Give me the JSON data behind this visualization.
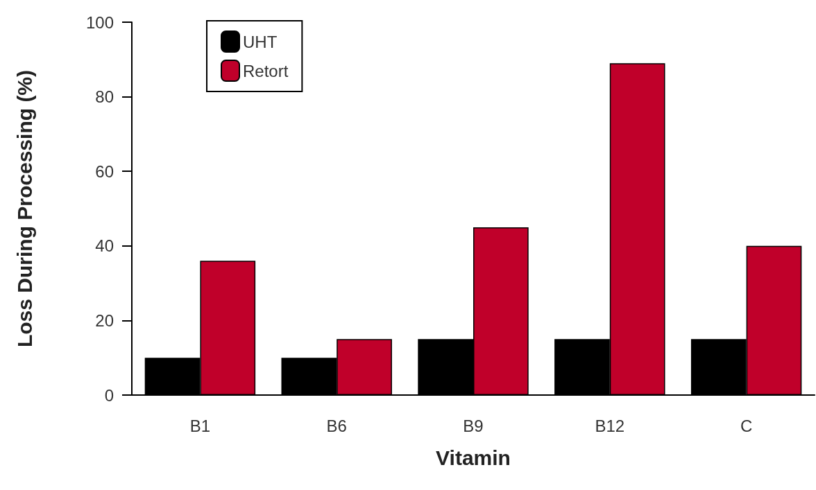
{
  "chart_data": {
    "type": "bar",
    "xlabel": "Vitamin",
    "ylabel": "Loss During Processing (%)",
    "categories": [
      "B1",
      "B6",
      "B9",
      "B12",
      "C"
    ],
    "series": [
      {
        "name": "UHT",
        "color": "#000000",
        "values": [
          10,
          10,
          15,
          15,
          15
        ]
      },
      {
        "name": "Retort",
        "color": "#c0002a",
        "values": [
          36,
          15,
          45,
          89,
          40
        ]
      }
    ],
    "ylim": [
      0,
      100
    ],
    "yticks": [
      0,
      20,
      40,
      60,
      80,
      100
    ],
    "grid": false,
    "legend": "top left"
  }
}
